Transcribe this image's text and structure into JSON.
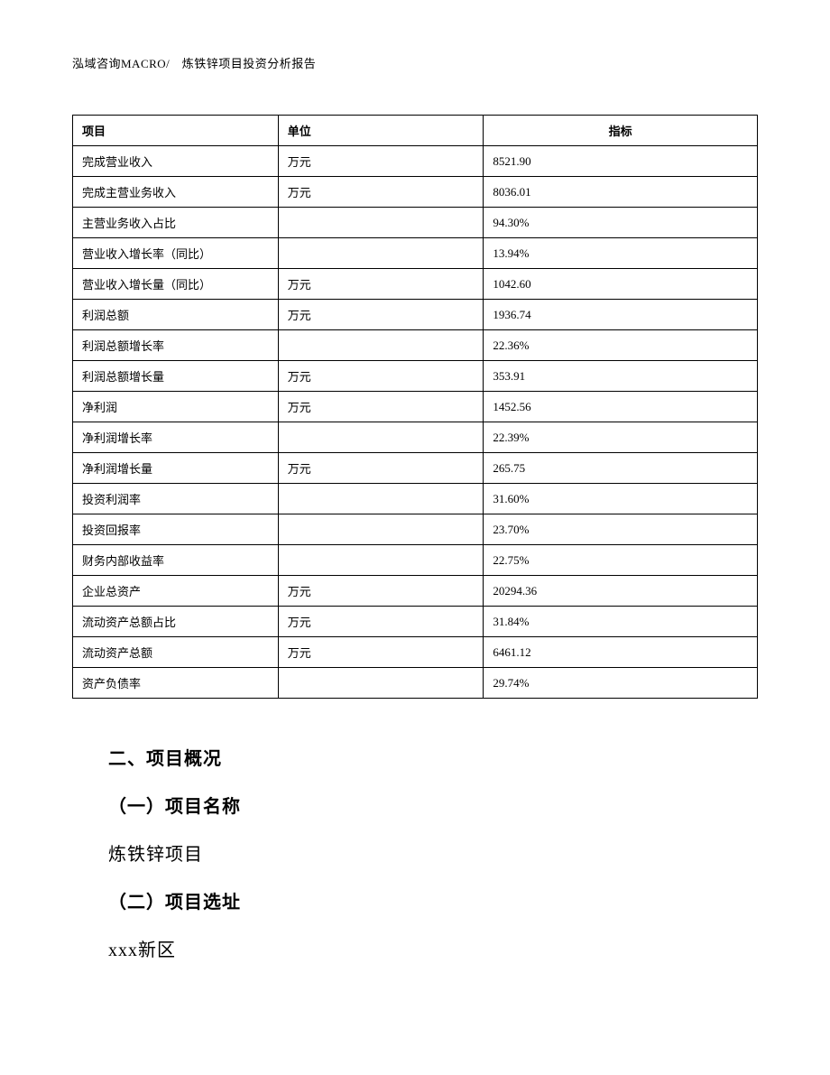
{
  "header": {
    "text": "泓域咨询MACRO/　炼铁锌项目投资分析报告"
  },
  "table": {
    "columns": [
      "项目",
      "单位",
      "指标"
    ],
    "rows": [
      {
        "item": "完成营业收入",
        "unit": "万元",
        "value": "8521.90"
      },
      {
        "item": "完成主营业务收入",
        "unit": "万元",
        "value": "8036.01"
      },
      {
        "item": "主营业务收入占比",
        "unit": "",
        "value": "94.30%"
      },
      {
        "item": "营业收入增长率（同比）",
        "unit": "",
        "value": "13.94%"
      },
      {
        "item": "营业收入增长量（同比）",
        "unit": "万元",
        "value": "1042.60"
      },
      {
        "item": "利润总额",
        "unit": "万元",
        "value": "1936.74"
      },
      {
        "item": "利润总额增长率",
        "unit": "",
        "value": "22.36%"
      },
      {
        "item": "利润总额增长量",
        "unit": "万元",
        "value": "353.91"
      },
      {
        "item": "净利润",
        "unit": "万元",
        "value": "1452.56"
      },
      {
        "item": "净利润增长率",
        "unit": "",
        "value": "22.39%"
      },
      {
        "item": "净利润增长量",
        "unit": "万元",
        "value": "265.75"
      },
      {
        "item": "投资利润率",
        "unit": "",
        "value": "31.60%"
      },
      {
        "item": "投资回报率",
        "unit": "",
        "value": "23.70%"
      },
      {
        "item": "财务内部收益率",
        "unit": "",
        "value": "22.75%"
      },
      {
        "item": "企业总资产",
        "unit": "万元",
        "value": "20294.36"
      },
      {
        "item": "流动资产总额占比",
        "unit": "万元",
        "value": "31.84%"
      },
      {
        "item": "流动资产总额",
        "unit": "万元",
        "value": "6461.12"
      },
      {
        "item": "资产负债率",
        "unit": "",
        "value": "29.74%"
      }
    ]
  },
  "body": {
    "section_title": "二、项目概况",
    "sub1_title": "（一）项目名称",
    "sub1_text": "炼铁锌项目",
    "sub2_title": "（二）项目选址",
    "sub2_text": "xxx新区"
  },
  "styling": {
    "background_color": "#ffffff",
    "text_color": "#000000",
    "border_color": "#000000",
    "header_fontsize": 13,
    "table_fontsize": 13,
    "heading_fontsize": 20,
    "body_fontsize": 20,
    "table_border_width": 1
  }
}
